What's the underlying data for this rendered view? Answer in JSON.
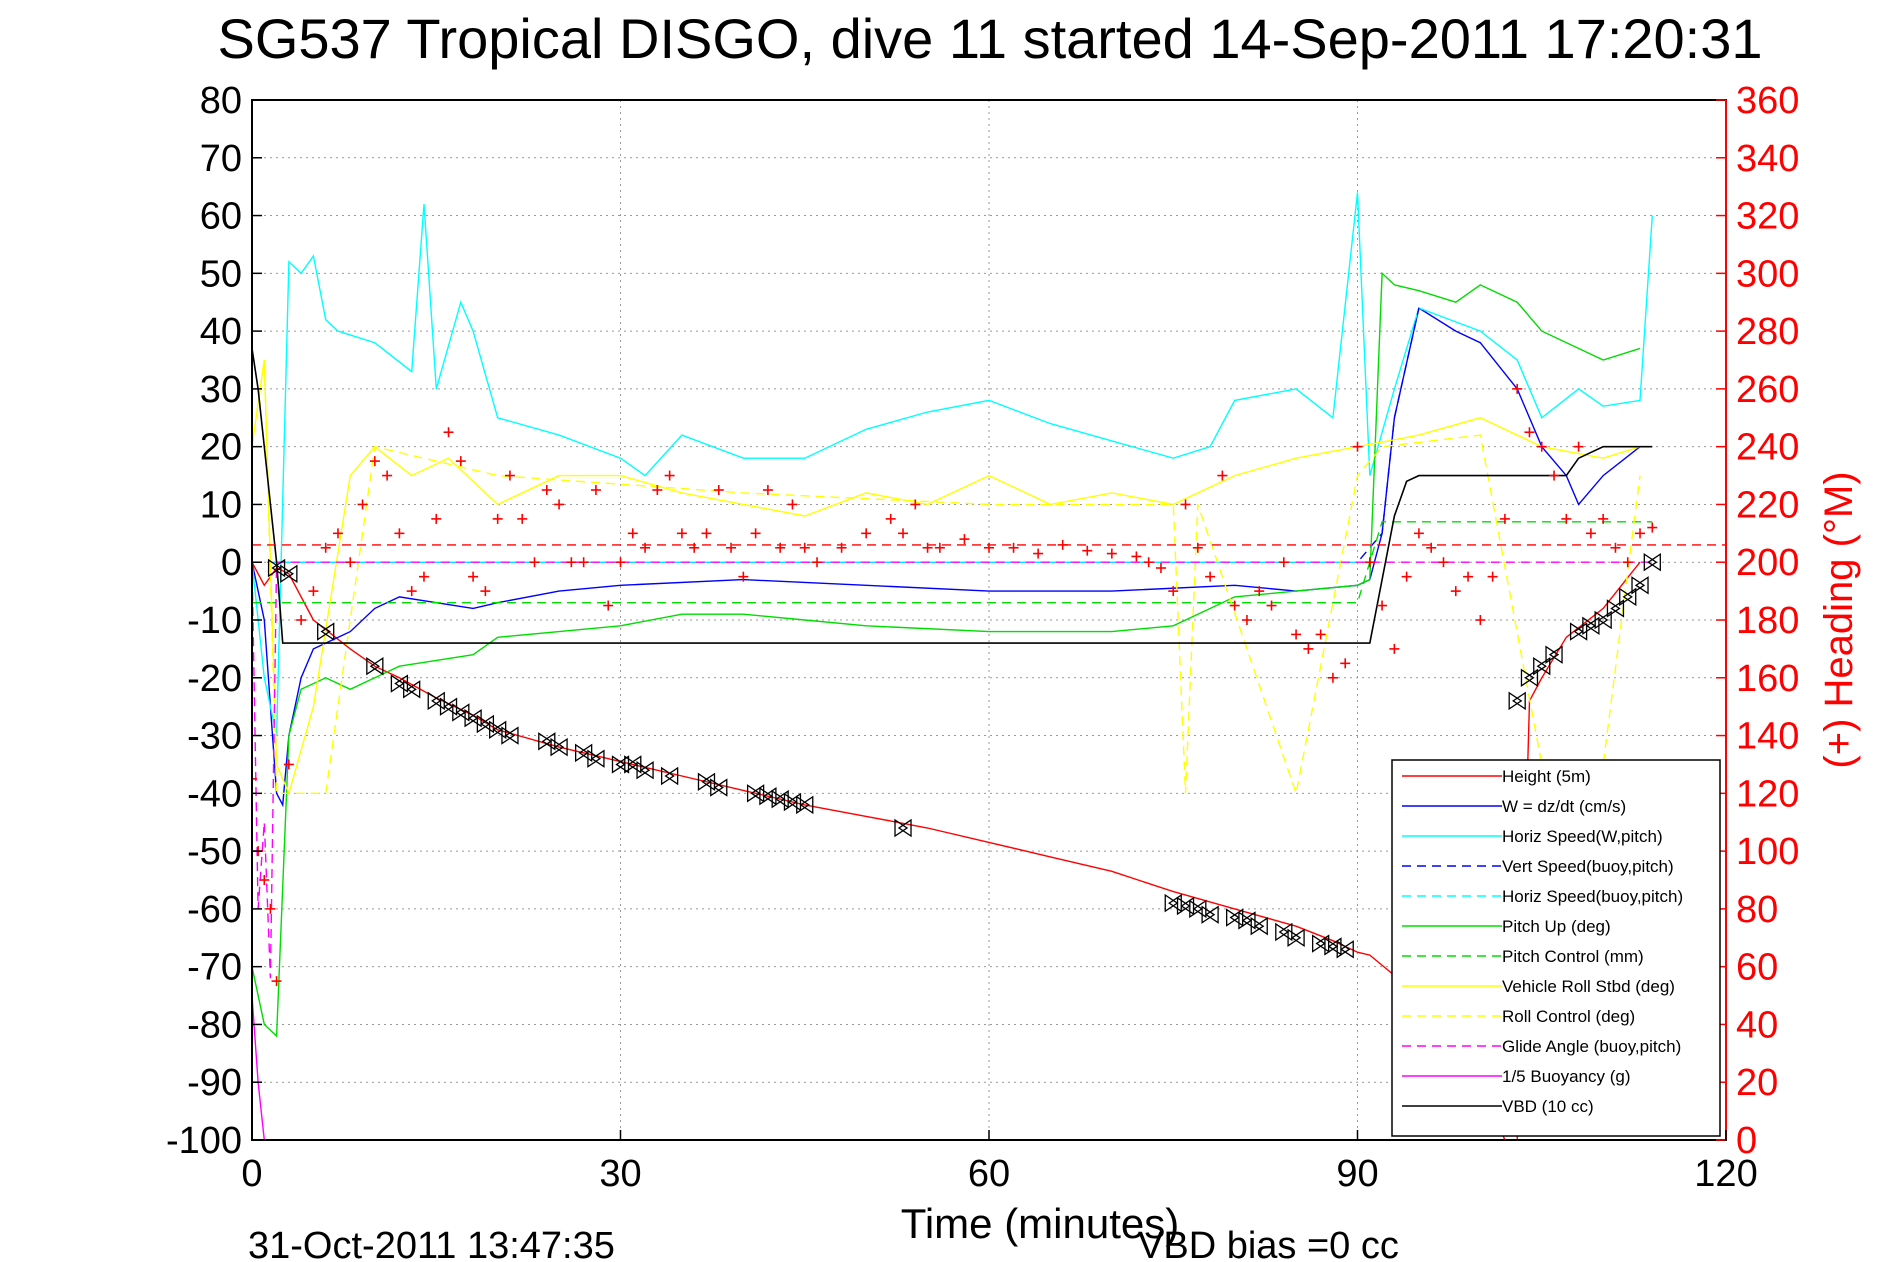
{
  "chart_data": {
    "type": "line",
    "title": "SG537 Tropical DISGO, dive 11 started 14-Sep-2011 17:20:31",
    "xlabel": "Time (minutes)",
    "ylabel_right": "(+) Heading (°M)",
    "footer_date": "31-Oct-2011 13:47:35",
    "footer_bias": "VBD bias =0 cc",
    "xlim": [
      0,
      120
    ],
    "ylim": [
      -100,
      80
    ],
    "ylim_right": [
      0,
      360
    ],
    "x_ticks": [
      "0",
      "30",
      "60",
      "90",
      "120"
    ],
    "y_ticks": [
      "80",
      "70",
      "60",
      "50",
      "40",
      "30",
      "20",
      "10",
      "0",
      "-10",
      "-20",
      "-30",
      "-40",
      "-50",
      "-60",
      "-70",
      "-80",
      "-90",
      "-100"
    ],
    "y_ticks_right": [
      "360",
      "340",
      "320",
      "300",
      "280",
      "260",
      "240",
      "220",
      "200",
      "180",
      "160",
      "140",
      "120",
      "100",
      "80",
      "60",
      "40",
      "20",
      "0"
    ],
    "grid": true,
    "legend_position": "bottom-right",
    "colors": {
      "height": "#ff0000",
      "w": "#0000ff",
      "horiz": "#00ffff",
      "pitch": "#00dd00",
      "roll": "#ffff00",
      "glide": "#ff00ff",
      "vbd": "#000000",
      "heading": "#ff0000"
    },
    "series": [
      {
        "name": "Height (5m)",
        "style": "solid",
        "color": "#ff0000",
        "x": [
          0,
          1,
          2,
          3,
          5,
          8,
          10,
          12,
          15,
          18,
          20,
          25,
          30,
          35,
          40,
          45,
          50,
          55,
          60,
          65,
          70,
          75,
          80,
          85,
          88,
          90,
          91,
          95,
          100,
          102,
          103,
          104,
          105,
          107,
          110,
          113
        ],
        "y": [
          0,
          -4,
          -1,
          -2,
          -10,
          -15,
          -18,
          -20,
          -23.5,
          -26.5,
          -29,
          -32,
          -34.5,
          -37,
          -39.5,
          -42,
          -44,
          -46,
          -48.5,
          -51,
          -53.5,
          -57,
          -60,
          -63,
          -65.5,
          -67.5,
          -68,
          -75,
          -90,
          -100,
          -100,
          -24,
          -20,
          -13,
          -8,
          0
        ]
      },
      {
        "name": "W = dz/dt (cm/s)",
        "style": "solid",
        "color": "#0000ff",
        "x": [
          0,
          1,
          2,
          2.5,
          3,
          4,
          5,
          6,
          8,
          10,
          12,
          15,
          18,
          20,
          25,
          30,
          40,
          50,
          60,
          70,
          80,
          85,
          90,
          91,
          92,
          93,
          95,
          98,
          100,
          103,
          105,
          107,
          108,
          110,
          113
        ],
        "y": [
          0,
          -10,
          -40,
          -42,
          -30,
          -20,
          -15,
          -14,
          -12,
          -8,
          -6,
          -7,
          -8,
          -7,
          -5,
          -4,
          -3,
          -4,
          -5,
          -5,
          -4,
          -5,
          -4,
          -3,
          5,
          25,
          44,
          40,
          38,
          30,
          20,
          15,
          10,
          15,
          20
        ]
      },
      {
        "name": "Horiz Speed(W,pitch)",
        "style": "solid",
        "color": "#00ffff",
        "x": [
          0,
          1,
          2,
          3,
          4,
          5,
          6,
          7,
          10,
          13,
          14,
          15,
          17,
          18,
          20,
          25,
          30,
          32,
          35,
          40,
          45,
          50,
          55,
          60,
          65,
          70,
          75,
          78,
          80,
          85,
          88,
          90,
          91,
          93,
          95,
          100,
          103,
          105,
          108,
          110,
          113,
          114
        ],
        "y": [
          0,
          -20,
          -30,
          52,
          50,
          53,
          42,
          40,
          38,
          33,
          62,
          30,
          45,
          40,
          25,
          22,
          18,
          15,
          22,
          18,
          18,
          23,
          26,
          28,
          24,
          21,
          18,
          20,
          28,
          30,
          25,
          64,
          15,
          30,
          44,
          40,
          35,
          25,
          30,
          27,
          28,
          60
        ]
      },
      {
        "name": "Vert Speed(buoy,pitch)",
        "style": "dashed",
        "color": "#0000ff",
        "x": [
          0,
          90,
          92,
          93,
          95
        ],
        "y": [
          0,
          0,
          5,
          25,
          44
        ]
      },
      {
        "name": "Horiz Speed(buoy,pitch)",
        "style": "dashed",
        "color": "#00ffff",
        "x": [
          0,
          90
        ],
        "y": [
          0,
          0
        ]
      },
      {
        "name": "Pitch Up (deg)",
        "style": "solid",
        "color": "#00dd00",
        "x": [
          0,
          1,
          2,
          3,
          4,
          5,
          6,
          8,
          10,
          12,
          15,
          18,
          20,
          25,
          30,
          35,
          40,
          45,
          50,
          60,
          70,
          75,
          80,
          85,
          90,
          91,
          92,
          93,
          95,
          98,
          100,
          103,
          105,
          110,
          113
        ],
        "y": [
          -70,
          -80,
          -82,
          -30,
          -22,
          -21,
          -20,
          -22,
          -20,
          -18,
          -17,
          -16,
          -13,
          -12,
          -11,
          -9,
          -9,
          -10,
          -11,
          -12,
          -12,
          -11,
          -6,
          -5,
          -4,
          -3,
          50,
          48,
          47,
          45,
          48,
          45,
          40,
          35,
          37
        ]
      },
      {
        "name": "Pitch Control (mm)",
        "style": "dashed",
        "color": "#00dd00",
        "x": [
          0,
          90,
          92,
          114
        ],
        "y": [
          -7,
          -7,
          7,
          7
        ]
      },
      {
        "name": "Vehicle Roll Stbd (deg)",
        "style": "solid",
        "color": "#ffff00",
        "x": [
          0,
          1,
          2,
          3,
          5,
          8,
          10,
          13,
          16,
          20,
          25,
          30,
          35,
          40,
          45,
          50,
          55,
          60,
          65,
          70,
          75,
          80,
          85,
          90,
          95,
          100,
          105,
          110,
          113
        ],
        "y": [
          20,
          35,
          -35,
          -40,
          -25,
          15,
          20,
          15,
          18,
          10,
          15,
          15,
          12,
          10,
          8,
          12,
          10,
          15,
          10,
          12,
          10,
          15,
          18,
          20,
          22,
          25,
          20,
          18,
          20
        ]
      },
      {
        "name": "Roll Control (deg)",
        "style": "dashed",
        "color": "#ffff00",
        "x": [
          0,
          1,
          2,
          3,
          4,
          6,
          10,
          20,
          40,
          60,
          75,
          76,
          77,
          85,
          90,
          92,
          100,
          105,
          110,
          113
        ],
        "y": [
          20,
          35,
          -40,
          -40,
          -40,
          -40,
          20,
          15,
          12,
          10,
          10,
          -40,
          10,
          -40,
          15,
          20,
          22,
          -35,
          -35,
          15
        ]
      },
      {
        "name": "Glide Angle (buoy,pitch)",
        "style": "dashed",
        "color": "#ff00ff",
        "x": [
          0,
          0.5,
          1,
          1.5,
          2,
          3,
          114
        ],
        "y": [
          0,
          -60,
          -45,
          -72,
          0,
          0,
          0
        ]
      },
      {
        "name": "1/5 Buoyancy (g)",
        "style": "solid",
        "color": "#ff00ff",
        "x": [
          0,
          0.5,
          1
        ],
        "y": [
          -75,
          -90,
          -100
        ]
      },
      {
        "name": "VBD (10 cc)",
        "style": "solid",
        "color": "#000000",
        "x": [
          0,
          0.5,
          1,
          2,
          2.5,
          3,
          90,
          91,
          92,
          93,
          94,
          95,
          101,
          107,
          108,
          110,
          112,
          114
        ],
        "y": [
          37,
          30,
          20,
          0,
          -14,
          -14,
          -14,
          -14,
          -3,
          8,
          14,
          15,
          15,
          15,
          18,
          20,
          20,
          20
        ]
      }
    ],
    "heading_markers": {
      "name": "(+) Heading",
      "color": "#ff0000",
      "marker": "+",
      "x": [
        0,
        0.5,
        1,
        1.5,
        2,
        3,
        4,
        5,
        6,
        7,
        8,
        9,
        10,
        11,
        12,
        13,
        14,
        15,
        16,
        17,
        18,
        19,
        20,
        21,
        22,
        23,
        24,
        25,
        26,
        27,
        28,
        29,
        30,
        31,
        32,
        33,
        34,
        35,
        36,
        37,
        38,
        39,
        40,
        41,
        42,
        43,
        44,
        45,
        46,
        48,
        50,
        52,
        53,
        54,
        55,
        56,
        58,
        60,
        62,
        64,
        66,
        68,
        70,
        72,
        73,
        74,
        75,
        76,
        77,
        78,
        79,
        80,
        81,
        82,
        83,
        84,
        85,
        86,
        87,
        88,
        89,
        90,
        91,
        92,
        93,
        94,
        95,
        96,
        97,
        98,
        99,
        100,
        101,
        102,
        103,
        104,
        105,
        106,
        107,
        108,
        109,
        110,
        111,
        112,
        113,
        114
      ],
      "y": [
        125,
        100,
        90,
        80,
        55,
        130,
        180,
        190,
        205,
        210,
        200,
        220,
        235,
        230,
        210,
        190,
        195,
        215,
        245,
        235,
        195,
        190,
        215,
        230,
        215,
        200,
        225,
        220,
        200,
        200,
        225,
        185,
        200,
        210,
        205,
        225,
        230,
        210,
        205,
        210,
        225,
        205,
        195,
        210,
        225,
        205,
        220,
        205,
        200,
        205,
        210,
        215,
        210,
        220,
        205,
        205,
        208,
        205,
        205,
        203,
        206,
        204,
        203,
        202,
        200,
        198,
        190,
        220,
        205,
        195,
        230,
        185,
        180,
        190,
        185,
        200,
        175,
        170,
        175,
        160,
        165,
        240,
        200,
        185,
        170,
        195,
        210,
        205,
        200,
        190,
        195,
        180,
        195,
        215,
        260,
        245,
        240,
        230,
        215,
        240,
        210,
        215,
        205,
        200,
        210,
        212
      ]
    },
    "vbd_triangle_markers": {
      "x": [
        2,
        3,
        6,
        10,
        12,
        13,
        15,
        16,
        17,
        18,
        19,
        20,
        21,
        24,
        25,
        27,
        28,
        30,
        31,
        32,
        34,
        37,
        38,
        41,
        42,
        43,
        44,
        45,
        53,
        75,
        76,
        77,
        78,
        80,
        81,
        82,
        84,
        85,
        87,
        88,
        89,
        103,
        104,
        105,
        106,
        108,
        109,
        110,
        111,
        112,
        113,
        114
      ],
      "y": [
        -1,
        -2,
        -12,
        -18,
        -21,
        -22,
        -24,
        -25,
        -26,
        -27,
        -28,
        -29,
        -30,
        -31,
        -32,
        -33,
        -34,
        -35,
        -35,
        -36,
        -37,
        -38,
        -39,
        -40,
        -40.5,
        -41,
        -41.5,
        -42,
        -46,
        -59,
        -59.5,
        -60,
        -61,
        -61.5,
        -62,
        -63,
        -64,
        -65,
        -66,
        -66.5,
        -67,
        -24,
        -20,
        -18,
        -16,
        -12,
        -11,
        -10,
        -8,
        -6,
        -4,
        0
      ]
    }
  }
}
